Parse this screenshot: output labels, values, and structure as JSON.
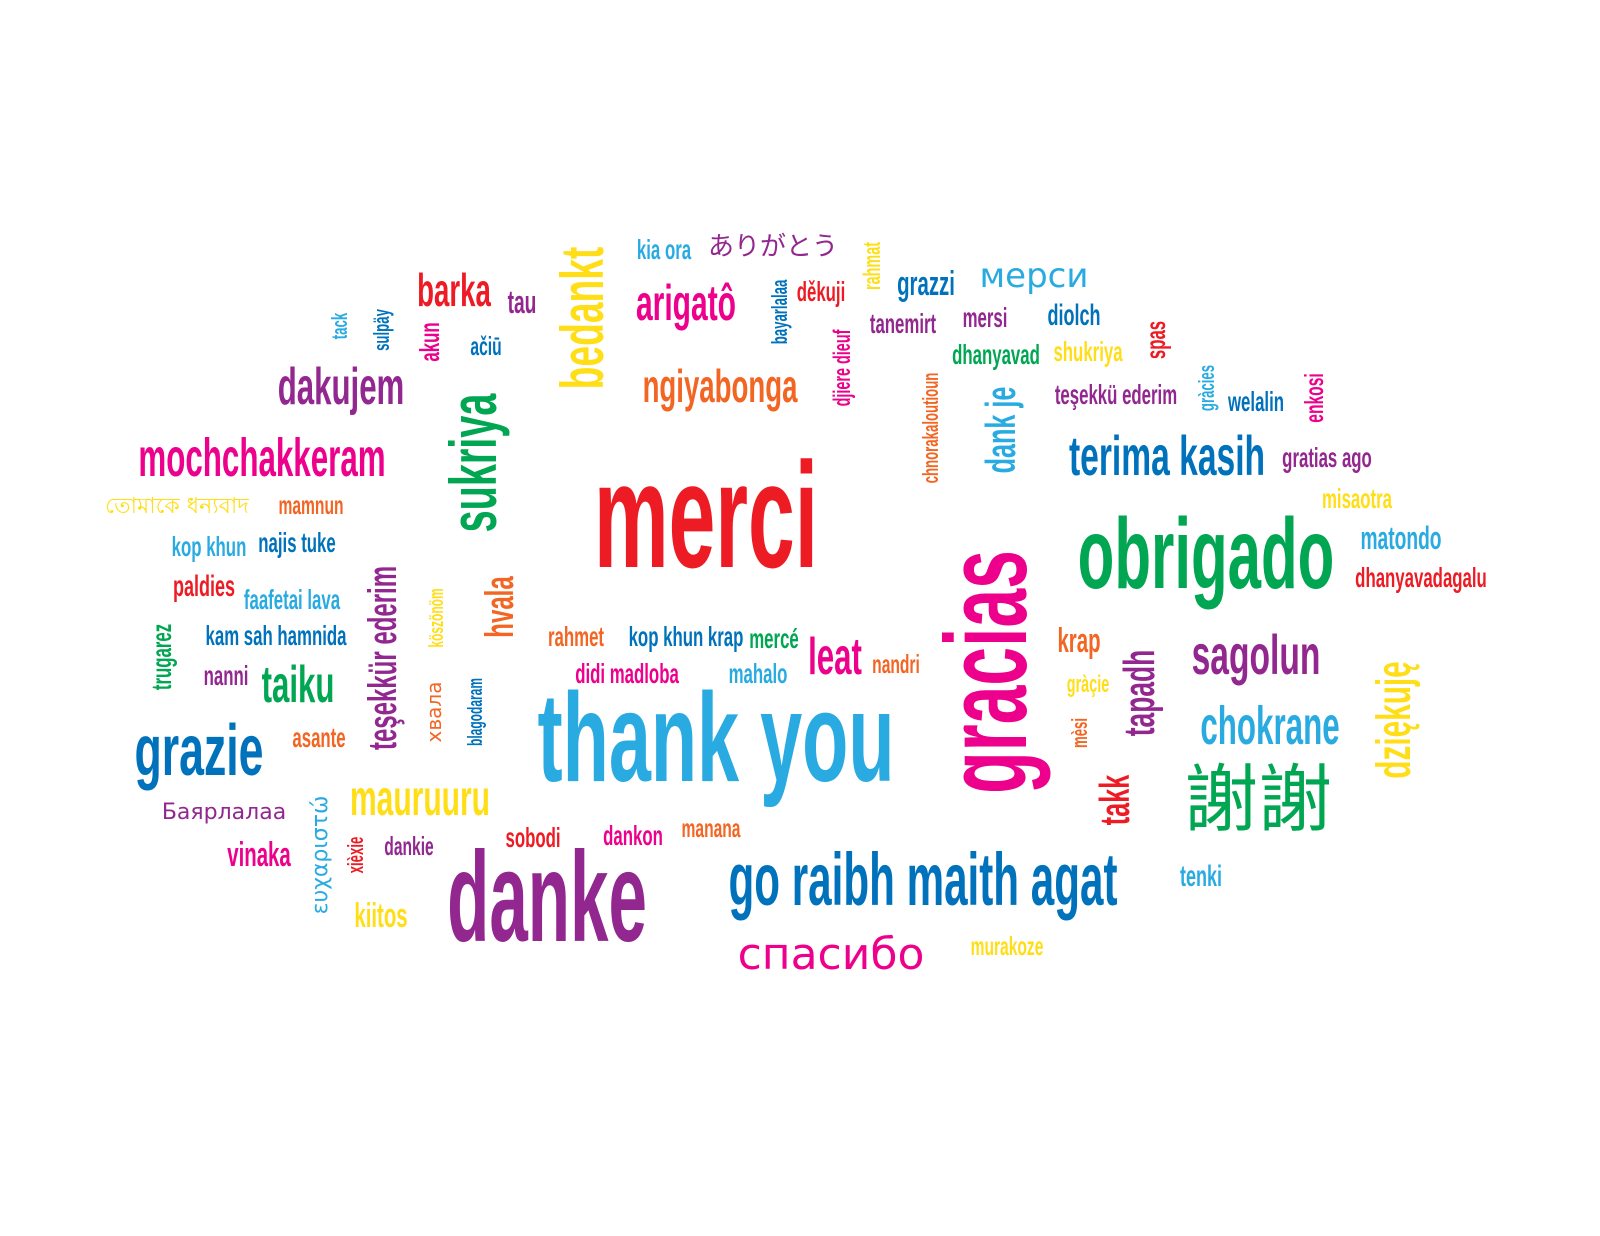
{
  "colors": {
    "red": "#ed1c24",
    "orange": "#f26522",
    "yellow": "#ffde17",
    "green": "#00a651",
    "sky": "#29abe2",
    "blue": "#0072bc",
    "purple": "#92278f",
    "magenta": "#ec008c"
  },
  "words": [
    "merci",
    "thank you",
    "gracias",
    "danke",
    "obrigado",
    "go raibh maith agat",
    "bedankt",
    "sukriya",
    "spasibo_cyr",
    "xiexie_han",
    "terima kasih",
    "mochchakkeram",
    "dakujem",
    "grazie",
    "sagolun",
    "chokrane",
    "dziekuje",
    "tesekkur_v",
    "mauruuru",
    "ngiyabonga",
    "arigato",
    "barka",
    "tapadh",
    "leat",
    "taiku",
    "takk",
    "hvala",
    "dank je",
    "arigatou_jp",
    "kia ora",
    "merci_cyr",
    "grazzi",
    "dekuji",
    "rahmat",
    "tau",
    "bayarlalaa",
    "tanemirt",
    "mersi",
    "diolch",
    "dhanyavad",
    "shukriya",
    "spas",
    "chnorakaloutioun",
    "djiere dieuf",
    "tesekku_small",
    "gracies",
    "welalin",
    "enkosi",
    "gratias ago",
    "misaotra",
    "matondo",
    "dhanyavadagalu",
    "tack",
    "sulpay",
    "akun",
    "aciu",
    "bengali",
    "mamnun",
    "kop khun",
    "najis tuke",
    "paldies",
    "faafetai lava",
    "kam sah hamnida",
    "trugarez",
    "nanni",
    "asante",
    "bayarlalaa_cyr",
    "vinaka",
    "efcharisto",
    "xiexie",
    "dankie",
    "kiitos",
    "koszonom",
    "khvala",
    "blagodaram",
    "rahmet",
    "kop khun krap",
    "merce",
    "didi madloba",
    "mahalo",
    "nandri",
    "krap",
    "gracie",
    "mesi",
    "sobodi",
    "dankon",
    "manana",
    "murakoze",
    "tenki"
  ],
  "texts": {
    "merci": "merci",
    "thank you": "thank you",
    "gracias": "gracias",
    "danke": "danke",
    "obrigado": "obrigado",
    "go raibh maith agat": "go raibh maith agat",
    "bedankt": "bedankt",
    "sukriya": "sukriya",
    "spasibo_cyr": "спасибо",
    "xiexie_han": "謝謝",
    "terima kasih": "terima kasih",
    "mochchakkeram": "mochchakkeram",
    "dakujem": "dakujem",
    "grazie": "grazie",
    "sagolun": "sagolun",
    "chokrane": "chokrane",
    "dziekuje": "dziękuję",
    "tesekkur_v": "teşekkür ederim",
    "mauruuru": "mauruuru",
    "ngiyabonga": "ngiyabonga",
    "arigato": "arigatô",
    "barka": "barka",
    "tapadh": "tapadh",
    "leat": "leat",
    "taiku": "taiku",
    "takk": "takk",
    "hvala": "hvala",
    "dank je": "dank je",
    "arigatou_jp": "ありがとう",
    "kia ora": "kia ora",
    "merci_cyr": "мерси",
    "grazzi": "grazzi",
    "dekuji": "děkuji",
    "rahmat": "rahmat",
    "tau": "tau",
    "bayarlalaa": "bayarlalaa",
    "tanemirt": "tanemirt",
    "mersi": "mersi",
    "diolch": "diolch",
    "dhanyavad": "dhanyavad",
    "shukriya": "shukriya",
    "spas": "spas",
    "chnorakaloutioun": "chnorakaloutioun",
    "djiere dieuf": "djiere dieuf",
    "tesekku_small": "teşekkü ederim",
    "gracies": "gràcies",
    "welalin": "welalin",
    "enkosi": "enkosi",
    "gratias ago": "gratias ago",
    "misaotra": "misaotra",
    "matondo": "matondo",
    "dhanyavadagalu": "dhanyavadagalu",
    "tack": "tack",
    "sulpay": "sulpäy",
    "akun": "akun",
    "aciu": "ačiū",
    "bengali": "তোমাকে ধন্যবাদ",
    "mamnun": "mamnun",
    "kop khun": "kop khun",
    "najis tuke": "najis tuke",
    "paldies": "paldies",
    "faafetai lava": "faafetai lava",
    "kam sah hamnida": "kam sah hamnida",
    "trugarez": "trugarez",
    "nanni": "nanni",
    "asante": "asante",
    "bayarlalaa_cyr": "Баярлалаа",
    "vinaka": "vinaka",
    "efcharisto": "ευχαριστώ",
    "xiexie": "xièxie",
    "dankie": "dankie",
    "kiitos": "kiitos",
    "koszonom": "köszönöm",
    "khvala": "хвала",
    "blagodaram": "blagodaram",
    "rahmet": "rahmet",
    "kop khun krap": "kop khun krap",
    "merce": "mercé",
    "didi madloba": "didi madloba",
    "mahalo": "mahalo",
    "nandri": "nandri",
    "krap": "krap",
    "gracie": "gràçie",
    "mesi": "mèsi",
    "sobodi": "sobodi",
    "dankon": "dankon",
    "manana": "manana",
    "murakoze": "murakoze",
    "tenki": "tenki"
  }
}
